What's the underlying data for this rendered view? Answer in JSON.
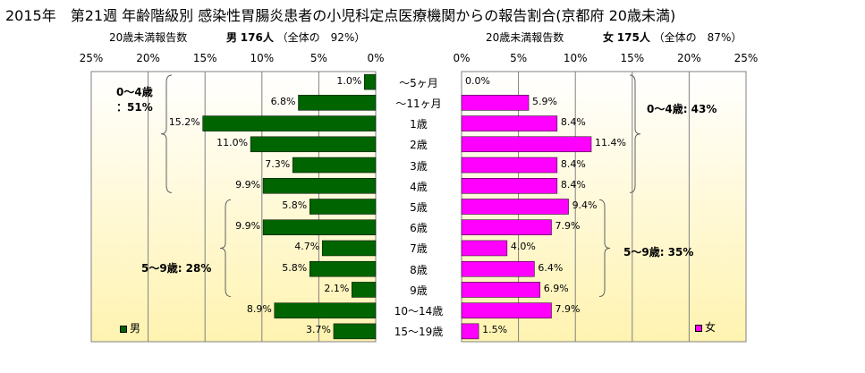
{
  "title": "2015年　第21週 年齢階級別 感染性胃腸炎患者の小児科定点医療機関からの報告割合(京都府 20歳未満)",
  "left_header": {
    "subtitle": "20歳未満報告数",
    "sex": "男",
    "count": "176人",
    "note": "（全体の　92%）"
  },
  "right_header": {
    "subtitle": "20歳未満報告数",
    "sex": "女",
    "count": "175人",
    "note": "（全体の　87%）"
  },
  "left_ticks": [
    "25%",
    "20%",
    "15%",
    "10%",
    "5%",
    "0%"
  ],
  "right_ticks": [
    "0%",
    "5%",
    "10%",
    "15%",
    "20%",
    "25%"
  ],
  "categories": [
    "～5ヶ月",
    "～11ヶ月",
    "1歳",
    "2歳",
    "3歳",
    "4歳",
    "5歳",
    "6歳",
    "7歳",
    "8歳",
    "9歳",
    "10～14歳",
    "15～19歳"
  ],
  "left_groups": [
    {
      "line1": "0～4歳",
      "line2": "：51%"
    },
    {
      "line1": "5～9歳: 28%",
      "line2": ""
    }
  ],
  "right_groups": [
    {
      "line1": "0～4歳: 43%",
      "line2": ""
    },
    {
      "line1": "5～9歳: 35%",
      "line2": ""
    }
  ],
  "legend_male": "男",
  "legend_female": "女",
  "colors": {
    "male": "#006400",
    "female": "#ff00ff",
    "plot_bg_top": "#ffffff",
    "plot_bg_bottom": "#fff3b0"
  },
  "chart_data": [
    {
      "type": "bar",
      "orientation": "horizontal",
      "direction": "reversed",
      "name": "男",
      "categories": [
        "～5ヶ月",
        "～11ヶ月",
        "1歳",
        "2歳",
        "3歳",
        "4歳",
        "5歳",
        "6歳",
        "7歳",
        "8歳",
        "9歳",
        "10～14歳",
        "15～19歳"
      ],
      "values": [
        1.0,
        6.8,
        15.2,
        11.0,
        7.3,
        9.9,
        5.8,
        9.9,
        4.7,
        5.8,
        2.1,
        8.9,
        3.7
      ],
      "labels": [
        "1.0%",
        "6.8%",
        "15.2%",
        "11.0%",
        "7.3%",
        "9.9%",
        "5.8%",
        "9.9%",
        "4.7%",
        "5.8%",
        "2.1%",
        "8.9%",
        "3.7%"
      ],
      "xlim": [
        0,
        25
      ],
      "grid": true,
      "legend": "bottom-left"
    },
    {
      "type": "bar",
      "orientation": "horizontal",
      "name": "女",
      "categories": [
        "～5ヶ月",
        "～11ヶ月",
        "1歳",
        "2歳",
        "3歳",
        "4歳",
        "5歳",
        "6歳",
        "7歳",
        "8歳",
        "9歳",
        "10～14歳",
        "15～19歳"
      ],
      "values": [
        0.0,
        5.9,
        8.4,
        11.4,
        8.4,
        8.4,
        9.4,
        7.9,
        4.0,
        6.4,
        6.9,
        7.9,
        1.5
      ],
      "labels": [
        "0.0%",
        "5.9%",
        "8.4%",
        "11.4%",
        "8.4%",
        "8.4%",
        "9.4%",
        "7.9%",
        "4.0%",
        "6.4%",
        "6.9%",
        "7.9%",
        "1.5%"
      ],
      "xlim": [
        0,
        25
      ],
      "grid": true,
      "legend": "bottom-right"
    }
  ]
}
